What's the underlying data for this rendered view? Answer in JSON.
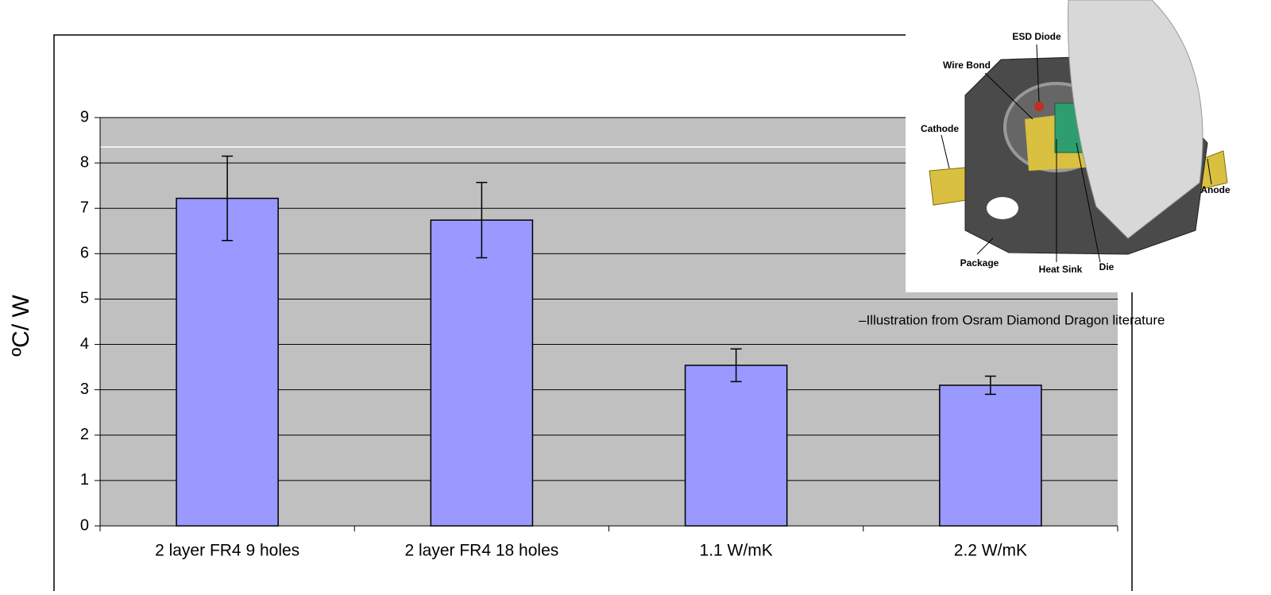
{
  "chart_data": {
    "type": "bar",
    "ylabel": "ºC/ W",
    "categories": [
      "2 layer FR4 9 holes",
      "2 layer FR4 18 holes",
      "1.1 W/mK",
      "2.2 W/mK"
    ],
    "values": [
      7.22,
      6.74,
      3.54,
      3.1
    ],
    "errors": [
      0.93,
      0.83,
      0.36,
      0.2
    ],
    "color": "#9999ff",
    "ylim": [
      0,
      9
    ],
    "yticks": [
      0,
      1,
      2,
      3,
      4,
      5,
      6,
      7,
      8,
      9
    ],
    "grid": true,
    "annotation": "–Illustration from Osram Diamond Dragon literature"
  },
  "illustration": {
    "labels": [
      "ESD Diode",
      "Wire Bond",
      "Cathode",
      "Anode",
      "Package",
      "Heat Sink",
      "Die"
    ]
  }
}
